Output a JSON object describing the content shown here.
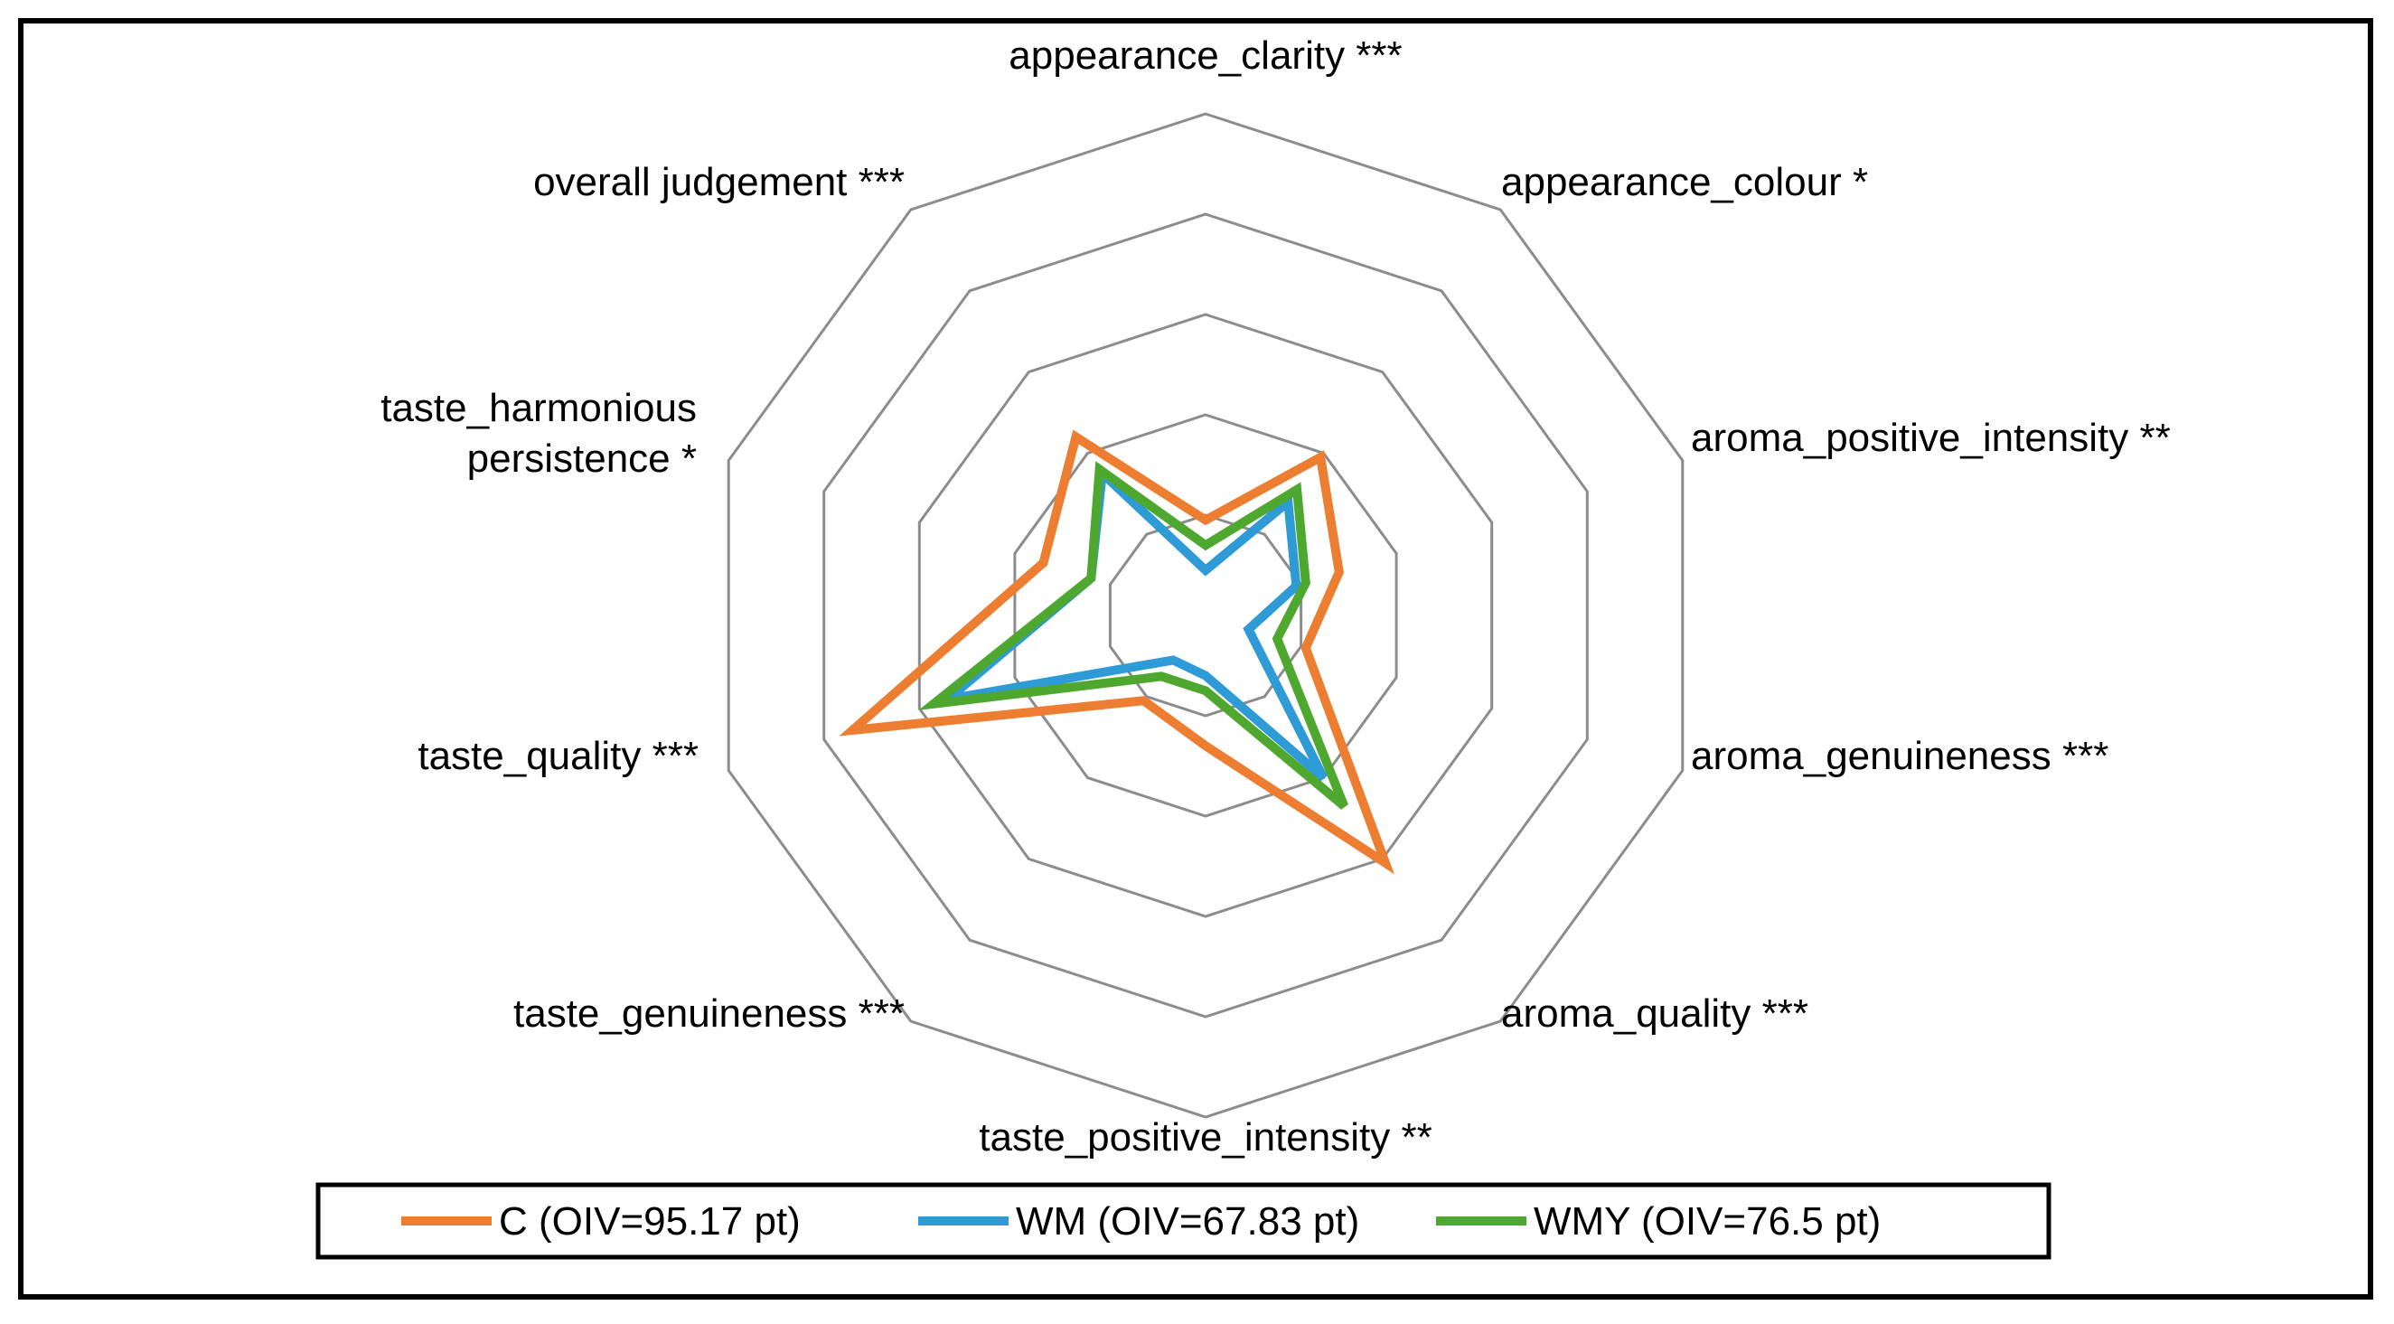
{
  "chart_data": {
    "type": "radar",
    "title": "",
    "axes": [
      "appearance_clarity ***",
      "appearance_colour *",
      "aroma_positive_intensity **",
      "aroma_genuineness ***",
      "aroma_quality ***",
      "taste_positive_intensity **",
      "taste_genuineness ***",
      "taste_quality ***",
      "taste_harmonious persistence *",
      "overall judgement ***"
    ],
    "r_range": [
      0,
      5
    ],
    "rings": 5,
    "grid": true,
    "legend_position": "bottom",
    "series": [
      {
        "name": "C (OIV=95.17 pt)",
        "color": "#ED7D31",
        "values": [
          0.95,
          1.95,
          1.4,
          1.05,
          3.05,
          1.3,
          1.05,
          3.7,
          1.7,
          2.2
        ]
      },
      {
        "name": "WM (OIV=67.83 pt)",
        "color": "#2E9BD6",
        "values": [
          0.45,
          1.4,
          0.95,
          0.45,
          2.0,
          0.6,
          0.55,
          2.7,
          1.2,
          1.75
        ]
      },
      {
        "name": "WMY (OIV=76.5 pt)",
        "color": "#4EA72E",
        "values": [
          0.7,
          1.55,
          1.05,
          0.75,
          2.35,
          0.75,
          0.75,
          2.85,
          1.2,
          1.8
        ]
      }
    ]
  }
}
